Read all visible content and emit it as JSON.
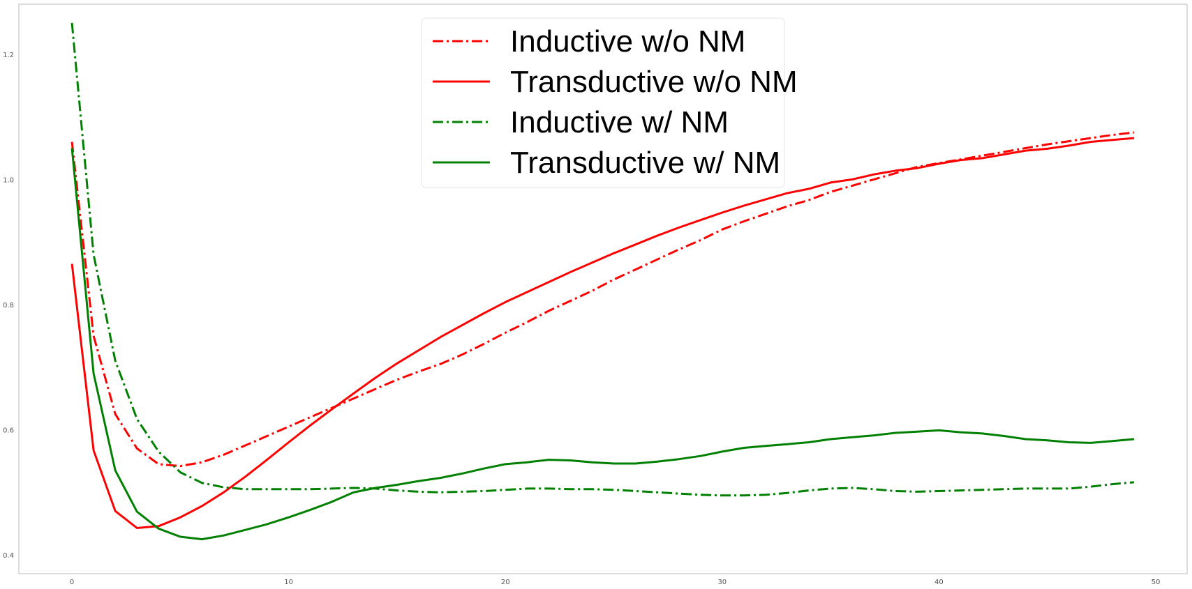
{
  "chart_data": {
    "type": "line",
    "title": "",
    "xlabel": "",
    "ylabel": "",
    "xlim": [
      -2.45,
      51.45
    ],
    "ylim": [
      0.37,
      1.28
    ],
    "grid": false,
    "legend_position": "top-center",
    "x_ticks": [
      0,
      10,
      20,
      30,
      40,
      50
    ],
    "x_tick_labels": [
      "0",
      "10",
      "20",
      "30",
      "40",
      "50"
    ],
    "y_ticks": [
      0.4,
      0.6,
      0.8,
      1.0,
      1.2
    ],
    "y_tick_labels": [
      "0.4",
      "0.6",
      "0.8",
      "1.0",
      "1.2"
    ],
    "series": [
      {
        "name": "Inductive w/o NM",
        "color": "#ff0000",
        "linestyle": "dashdot",
        "x": [
          0,
          1,
          2,
          3,
          4,
          5,
          6,
          7,
          8,
          9,
          10,
          11,
          12,
          13,
          14,
          15,
          16,
          17,
          18,
          19,
          20,
          21,
          22,
          23,
          24,
          25,
          26,
          27,
          28,
          29,
          30,
          31,
          32,
          33,
          34,
          35,
          36,
          37,
          38,
          39,
          40,
          41,
          42,
          43,
          44,
          45,
          46,
          47,
          48,
          49
        ],
        "values": [
          1.06,
          0.75,
          0.625,
          0.57,
          0.545,
          0.542,
          0.548,
          0.56,
          0.575,
          0.59,
          0.605,
          0.62,
          0.635,
          0.65,
          0.665,
          0.68,
          0.693,
          0.705,
          0.72,
          0.737,
          0.755,
          0.772,
          0.79,
          0.806,
          0.822,
          0.84,
          0.856,
          0.872,
          0.888,
          0.903,
          0.92,
          0.933,
          0.945,
          0.957,
          0.967,
          0.98,
          0.99,
          1.0,
          1.01,
          1.02,
          1.026,
          1.032,
          1.038,
          1.044,
          1.05,
          1.056,
          1.061,
          1.066,
          1.071,
          1.075
        ]
      },
      {
        "name": "Transductive w/o NM",
        "color": "#ff0000",
        "linestyle": "solid",
        "x": [
          0,
          1,
          2,
          3,
          4,
          5,
          6,
          7,
          8,
          9,
          10,
          11,
          12,
          13,
          14,
          15,
          16,
          17,
          18,
          19,
          20,
          21,
          22,
          23,
          24,
          25,
          26,
          27,
          28,
          29,
          30,
          31,
          32,
          33,
          34,
          35,
          36,
          37,
          38,
          39,
          40,
          41,
          42,
          43,
          44,
          45,
          46,
          47,
          48,
          49
        ],
        "values": [
          0.865,
          0.567,
          0.47,
          0.443,
          0.446,
          0.46,
          0.478,
          0.5,
          0.525,
          0.552,
          0.58,
          0.607,
          0.633,
          0.658,
          0.683,
          0.706,
          0.727,
          0.748,
          0.767,
          0.786,
          0.804,
          0.82,
          0.836,
          0.852,
          0.867,
          0.882,
          0.896,
          0.91,
          0.923,
          0.935,
          0.947,
          0.958,
          0.968,
          0.978,
          0.985,
          0.995,
          1.0,
          1.008,
          1.014,
          1.018,
          1.025,
          1.031,
          1.034,
          1.04,
          1.046,
          1.049,
          1.054,
          1.06,
          1.063,
          1.066
        ]
      },
      {
        "name": "Inductive w/ NM",
        "color": "#008000",
        "linestyle": "dashdot",
        "x": [
          0,
          1,
          2,
          3,
          4,
          5,
          6,
          7,
          8,
          9,
          10,
          11,
          12,
          13,
          14,
          15,
          16,
          17,
          18,
          19,
          20,
          21,
          22,
          23,
          24,
          25,
          26,
          27,
          28,
          29,
          30,
          31,
          32,
          33,
          34,
          35,
          36,
          37,
          38,
          39,
          40,
          41,
          42,
          43,
          44,
          45,
          46,
          47,
          48,
          49
        ],
        "values": [
          1.25,
          0.88,
          0.71,
          0.617,
          0.565,
          0.532,
          0.515,
          0.508,
          0.505,
          0.505,
          0.505,
          0.505,
          0.506,
          0.507,
          0.506,
          0.503,
          0.501,
          0.5,
          0.501,
          0.502,
          0.504,
          0.506,
          0.506,
          0.505,
          0.505,
          0.504,
          0.502,
          0.5,
          0.498,
          0.496,
          0.495,
          0.495,
          0.496,
          0.499,
          0.503,
          0.506,
          0.507,
          0.505,
          0.502,
          0.501,
          0.502,
          0.503,
          0.504,
          0.505,
          0.506,
          0.506,
          0.506,
          0.509,
          0.513,
          0.516
        ]
      },
      {
        "name": "Transductive w/ NM",
        "color": "#008000",
        "linestyle": "solid",
        "x": [
          0,
          1,
          2,
          3,
          4,
          5,
          6,
          7,
          8,
          9,
          10,
          11,
          12,
          13,
          14,
          15,
          16,
          17,
          18,
          19,
          20,
          21,
          22,
          23,
          24,
          25,
          26,
          27,
          28,
          29,
          30,
          31,
          32,
          33,
          34,
          35,
          36,
          37,
          38,
          39,
          40,
          41,
          42,
          43,
          44,
          45,
          46,
          47,
          48,
          49
        ],
        "values": [
          1.05,
          0.69,
          0.535,
          0.469,
          0.442,
          0.429,
          0.425,
          0.431,
          0.44,
          0.449,
          0.46,
          0.472,
          0.485,
          0.5,
          0.507,
          0.512,
          0.518,
          0.523,
          0.53,
          0.538,
          0.545,
          0.548,
          0.552,
          0.551,
          0.548,
          0.546,
          0.546,
          0.549,
          0.553,
          0.558,
          0.565,
          0.571,
          0.574,
          0.577,
          0.58,
          0.585,
          0.588,
          0.591,
          0.595,
          0.597,
          0.599,
          0.596,
          0.594,
          0.59,
          0.585,
          0.583,
          0.58,
          0.579,
          0.582,
          0.585
        ]
      }
    ]
  }
}
